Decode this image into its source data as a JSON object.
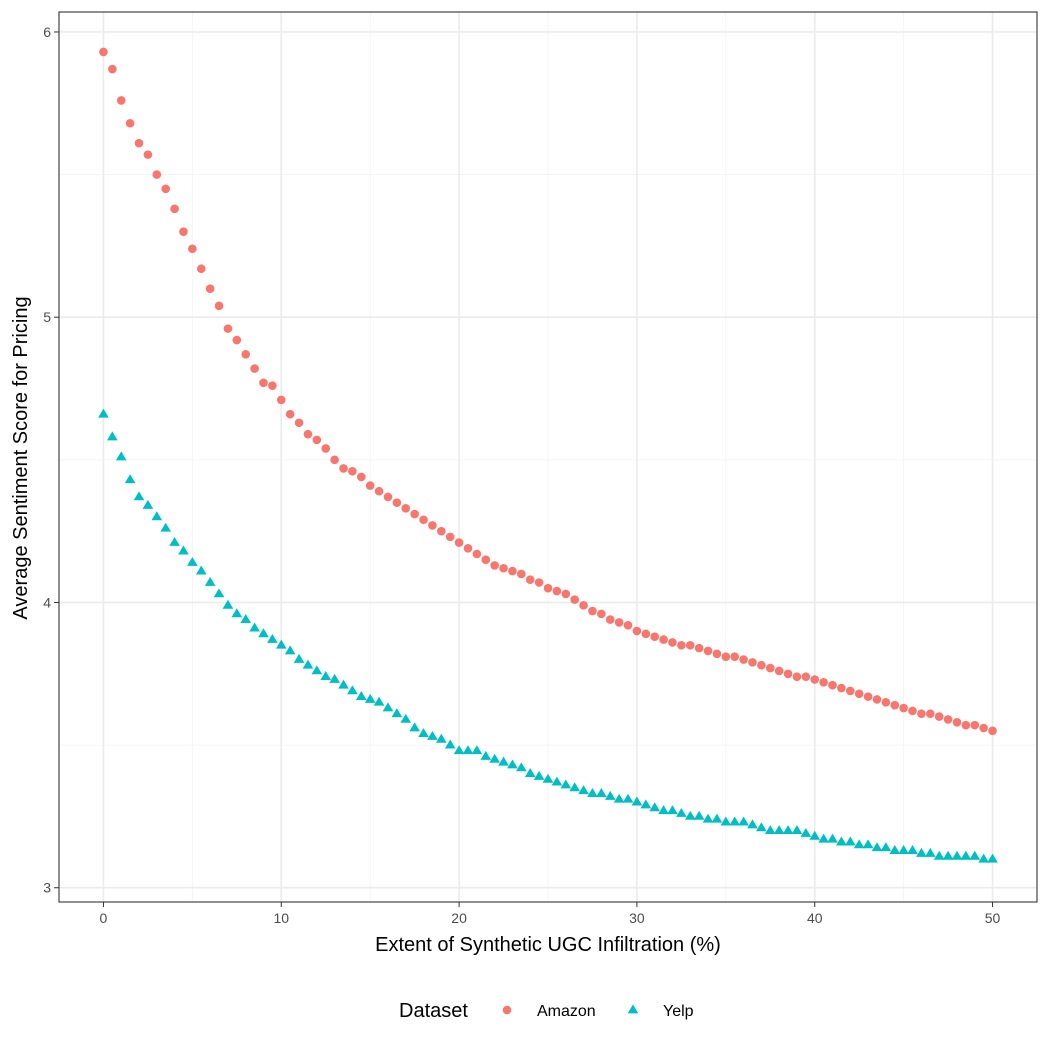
{
  "chart_data": {
    "type": "scatter",
    "title": "",
    "xlabel": "Extent of Synthetic UGC Infiltration (%)",
    "ylabel": "Average Sentiment Score for Pricing",
    "xlim": [
      -2.5,
      52.5
    ],
    "ylim": [
      2.95,
      6.07
    ],
    "x_ticks": [
      0,
      10,
      20,
      30,
      40,
      50
    ],
    "x_tick_labels": [
      "0",
      "10",
      "20",
      "30",
      "40",
      "50"
    ],
    "y_ticks": [
      3,
      4,
      5,
      6
    ],
    "y_tick_labels": [
      "3",
      "4",
      "5",
      "6"
    ],
    "grid": true,
    "legend": {
      "title": "Dataset",
      "position": "bottom"
    },
    "x": [
      0,
      0.5,
      1,
      1.5,
      2,
      2.5,
      3,
      3.5,
      4,
      4.5,
      5,
      5.5,
      6,
      6.5,
      7,
      7.5,
      8,
      8.5,
      9,
      9.5,
      10,
      10.5,
      11,
      11.5,
      12,
      12.5,
      13,
      13.5,
      14,
      14.5,
      15,
      15.5,
      16,
      16.5,
      17,
      17.5,
      18,
      18.5,
      19,
      19.5,
      20,
      20.5,
      21,
      21.5,
      22,
      22.5,
      23,
      23.5,
      24,
      24.5,
      25,
      25.5,
      26,
      26.5,
      27,
      27.5,
      28,
      28.5,
      29,
      29.5,
      30,
      30.5,
      31,
      31.5,
      32,
      32.5,
      33,
      33.5,
      34,
      34.5,
      35,
      35.5,
      36,
      36.5,
      37,
      37.5,
      38,
      38.5,
      39,
      39.5,
      40,
      40.5,
      41,
      41.5,
      42,
      42.5,
      43,
      43.5,
      44,
      44.5,
      45,
      45.5,
      46,
      46.5,
      47,
      47.5,
      48,
      48.5,
      49,
      49.5,
      50
    ],
    "series": [
      {
        "name": "Amazon",
        "color": "#F8766D",
        "shape": "circle",
        "values": [
          5.93,
          5.87,
          5.76,
          5.68,
          5.61,
          5.57,
          5.5,
          5.45,
          5.38,
          5.3,
          5.24,
          5.17,
          5.1,
          5.04,
          4.96,
          4.92,
          4.87,
          4.82,
          4.77,
          4.76,
          4.71,
          4.66,
          4.63,
          4.59,
          4.57,
          4.54,
          4.5,
          4.47,
          4.46,
          4.44,
          4.41,
          4.39,
          4.37,
          4.35,
          4.33,
          4.31,
          4.29,
          4.27,
          4.25,
          4.23,
          4.21,
          4.19,
          4.17,
          4.15,
          4.13,
          4.12,
          4.11,
          4.1,
          4.08,
          4.07,
          4.05,
          4.04,
          4.03,
          4.01,
          3.99,
          3.97,
          3.96,
          3.94,
          3.93,
          3.92,
          3.9,
          3.89,
          3.88,
          3.87,
          3.86,
          3.85,
          3.85,
          3.84,
          3.83,
          3.82,
          3.81,
          3.81,
          3.8,
          3.79,
          3.78,
          3.77,
          3.76,
          3.75,
          3.74,
          3.74,
          3.73,
          3.72,
          3.71,
          3.7,
          3.69,
          3.68,
          3.67,
          3.66,
          3.65,
          3.64,
          3.63,
          3.62,
          3.61,
          3.61,
          3.6,
          3.59,
          3.58,
          3.57,
          3.57,
          3.56,
          3.55
        ]
      },
      {
        "name": "Yelp",
        "color": "#00BFC4",
        "shape": "triangle",
        "values": [
          4.66,
          4.58,
          4.51,
          4.43,
          4.37,
          4.34,
          4.3,
          4.26,
          4.21,
          4.18,
          4.14,
          4.11,
          4.07,
          4.03,
          3.99,
          3.96,
          3.94,
          3.91,
          3.89,
          3.87,
          3.85,
          3.83,
          3.8,
          3.78,
          3.76,
          3.74,
          3.73,
          3.71,
          3.69,
          3.67,
          3.66,
          3.65,
          3.63,
          3.61,
          3.59,
          3.56,
          3.54,
          3.53,
          3.52,
          3.5,
          3.48,
          3.48,
          3.48,
          3.46,
          3.45,
          3.44,
          3.43,
          3.42,
          3.4,
          3.39,
          3.38,
          3.37,
          3.36,
          3.35,
          3.34,
          3.33,
          3.33,
          3.32,
          3.31,
          3.31,
          3.3,
          3.29,
          3.28,
          3.27,
          3.27,
          3.26,
          3.25,
          3.25,
          3.24,
          3.24,
          3.23,
          3.23,
          3.23,
          3.22,
          3.21,
          3.2,
          3.2,
          3.2,
          3.2,
          3.19,
          3.18,
          3.17,
          3.17,
          3.16,
          3.16,
          3.15,
          3.15,
          3.14,
          3.14,
          3.13,
          3.13,
          3.13,
          3.12,
          3.12,
          3.11,
          3.11,
          3.11,
          3.11,
          3.11,
          3.1,
          3.1
        ]
      }
    ]
  }
}
